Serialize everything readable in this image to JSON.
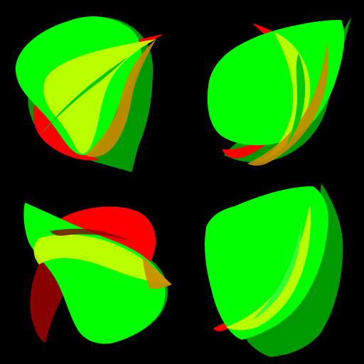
{
  "scene": {
    "background": "#000000",
    "palette": {
      "red": "#FF0000",
      "dark_red": "#880000",
      "green": "#00FF00",
      "dark_green": "#009900",
      "yellow": "#CCFF00",
      "orange": "#CC8800"
    },
    "tiles": [
      {
        "name": "top-left",
        "overlay_opacity": 0.78
      },
      {
        "name": "top-right",
        "overlay_opacity": 0.78
      },
      {
        "name": "bottom-left",
        "overlay_opacity": 0.78
      },
      {
        "name": "bottom-right",
        "overlay_opacity": 0.78
      }
    ]
  }
}
